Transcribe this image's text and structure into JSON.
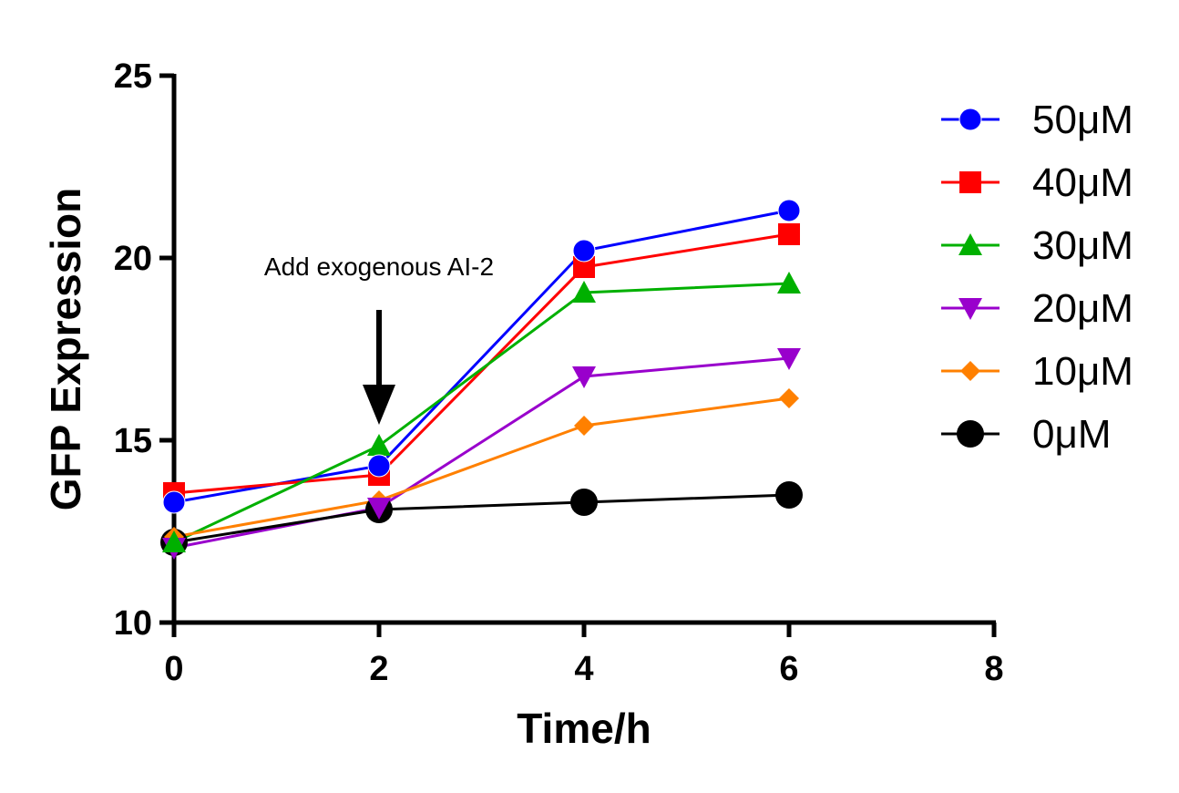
{
  "chart_data": {
    "type": "line",
    "xlabel": "Time/h",
    "ylabel": "GFP Expression",
    "xlim": [
      0,
      8
    ],
    "ylim": [
      10,
      25
    ],
    "xticks": [
      0,
      2,
      4,
      6,
      8
    ],
    "yticks": [
      10,
      15,
      20,
      25
    ],
    "grid": false,
    "legend_position": "right",
    "annotation": {
      "text": "Add exogenous AI-2",
      "x": 2,
      "arrow": "down"
    },
    "series": [
      {
        "name": "50μM",
        "color": "#0000ff",
        "marker": "circle",
        "x": [
          0,
          2,
          4,
          6
        ],
        "y": [
          13.3,
          14.3,
          20.2,
          21.3
        ]
      },
      {
        "name": "40μM",
        "color": "#ff0000",
        "marker": "square",
        "x": [
          0,
          2,
          4,
          6
        ],
        "y": [
          13.55,
          14.05,
          19.75,
          20.65
        ]
      },
      {
        "name": "30μM",
        "color": "#00b000",
        "marker": "triangle-up",
        "x": [
          0,
          2,
          4,
          6
        ],
        "y": [
          12.2,
          14.85,
          19.05,
          19.3
        ]
      },
      {
        "name": "20μM",
        "color": "#9900cc",
        "marker": "triangle-down",
        "x": [
          0,
          2,
          4,
          6
        ],
        "y": [
          12.05,
          13.15,
          16.75,
          17.25
        ]
      },
      {
        "name": "10μM",
        "color": "#ff8000",
        "marker": "diamond",
        "x": [
          0,
          2,
          4,
          6
        ],
        "y": [
          12.35,
          13.35,
          15.4,
          16.15
        ]
      },
      {
        "name": "0μM",
        "color": "#000000",
        "marker": "circle-large",
        "x": [
          0,
          2,
          4,
          6
        ],
        "y": [
          12.2,
          13.1,
          13.3,
          13.5
        ]
      }
    ]
  }
}
